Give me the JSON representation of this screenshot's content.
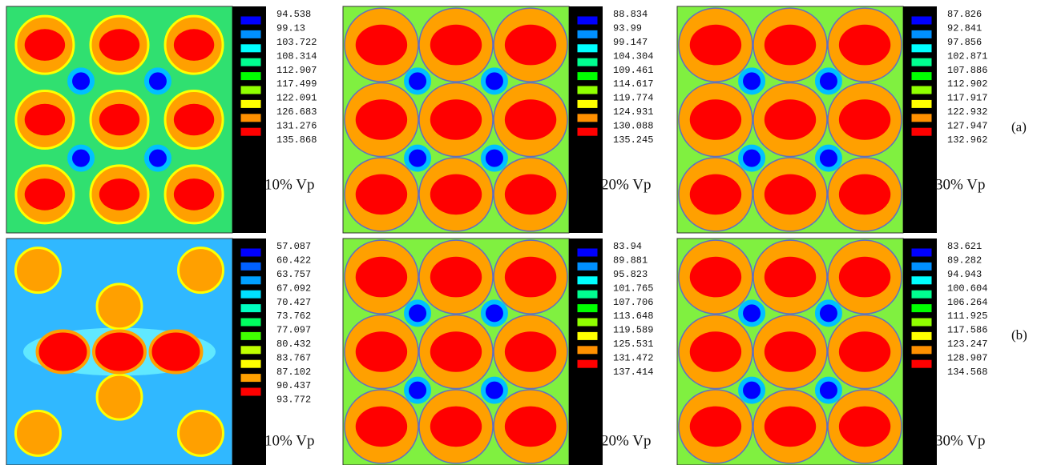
{
  "rows": [
    {
      "label": "(a)",
      "panels": [
        {
          "values": [
            "94.538",
            "99.13",
            "103.722",
            "108.314",
            "112.907",
            "117.499",
            "122.091",
            "126.683",
            "131.276",
            "135.868"
          ],
          "caption": "10% Vp",
          "colors": [
            "#0000ff",
            "#0090ff",
            "#00ffff",
            "#00ff90",
            "#00ff00",
            "#90ff00",
            "#ffff00",
            "#ff9000",
            "#ff0000"
          ]
        },
        {
          "values": [
            "88.834",
            "93.99",
            "99.147",
            "104.304",
            "109.461",
            "114.617",
            "119.774",
            "124.931",
            "130.088",
            "135.245"
          ],
          "caption": "20% Vp",
          "colors": [
            "#0000ff",
            "#0090ff",
            "#00ffff",
            "#00ff90",
            "#00ff00",
            "#90ff00",
            "#ffff00",
            "#ff9000",
            "#ff0000"
          ]
        },
        {
          "values": [
            "87.826",
            "92.841",
            "97.856",
            "102.871",
            "107.886",
            "112.902",
            "117.917",
            "122.932",
            "127.947",
            "132.962"
          ],
          "caption": "30% Vp",
          "colors": [
            "#0000ff",
            "#0090ff",
            "#00ffff",
            "#00ff90",
            "#00ff00",
            "#90ff00",
            "#ffff00",
            "#ff9000",
            "#ff0000"
          ]
        }
      ]
    },
    {
      "label": "(b)",
      "panels": [
        {
          "values": [
            "57.087",
            "60.422",
            "63.757",
            "67.092",
            "70.427",
            "73.762",
            "77.097",
            "80.432",
            "83.767",
            "87.102",
            "90.437",
            "93.772"
          ],
          "caption": "10% Vp",
          "colors": [
            "#0000ff",
            "#0060ff",
            "#00a0ff",
            "#00e0ff",
            "#00ffc0",
            "#00ff60",
            "#40ff00",
            "#c0ff00",
            "#ffff00",
            "#ffa000",
            "#ff0000"
          ]
        },
        {
          "values": [
            "83.94",
            "89.881",
            "95.823",
            "101.765",
            "107.706",
            "113.648",
            "119.589",
            "125.531",
            "131.472",
            "137.414"
          ],
          "caption": "20% Vp",
          "colors": [
            "#0000ff",
            "#0090ff",
            "#00ffff",
            "#00ff90",
            "#00ff00",
            "#90ff00",
            "#ffff00",
            "#ff9000",
            "#ff0000"
          ]
        },
        {
          "values": [
            "83.621",
            "89.282",
            "94.943",
            "100.604",
            "106.264",
            "111.925",
            "117.586",
            "123.247",
            "128.907",
            "134.568"
          ],
          "caption": "30% Vp",
          "colors": [
            "#0000ff",
            "#0090ff",
            "#00ffff",
            "#00ff90",
            "#00ff00",
            "#90ff00",
            "#ffff00",
            "#ff9000",
            "#ff0000"
          ]
        }
      ]
    }
  ]
}
